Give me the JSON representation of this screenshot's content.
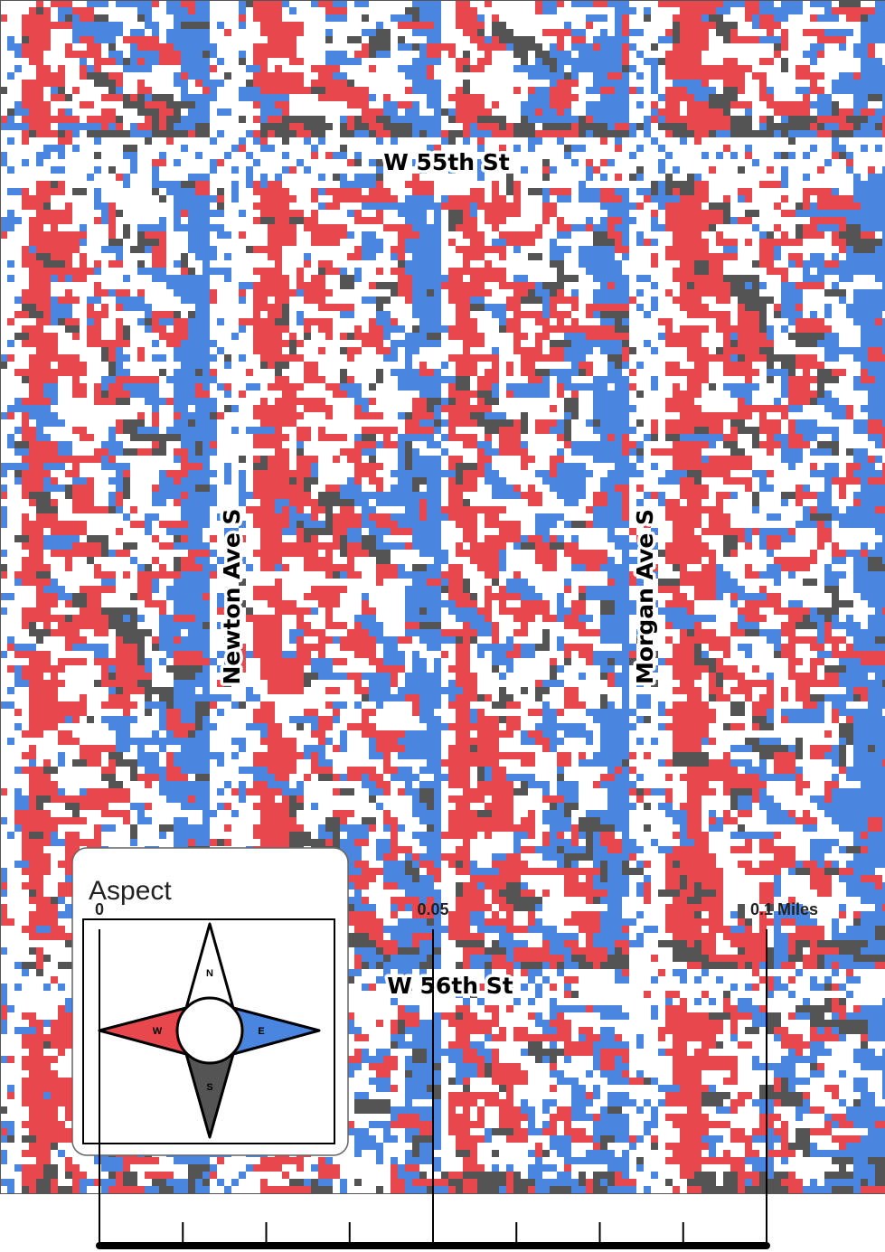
{
  "street_labels": [
    "W 55th St",
    "W 56th St",
    "Newton Ave S",
    "Morgan Ave S"
  ],
  "legend": {
    "title": "Aspect",
    "directions": [
      "N",
      "W",
      "E",
      "S"
    ]
  },
  "scale_bar": {
    "labels": [
      "0",
      "0.05",
      "0.1 Miles"
    ]
  }
}
